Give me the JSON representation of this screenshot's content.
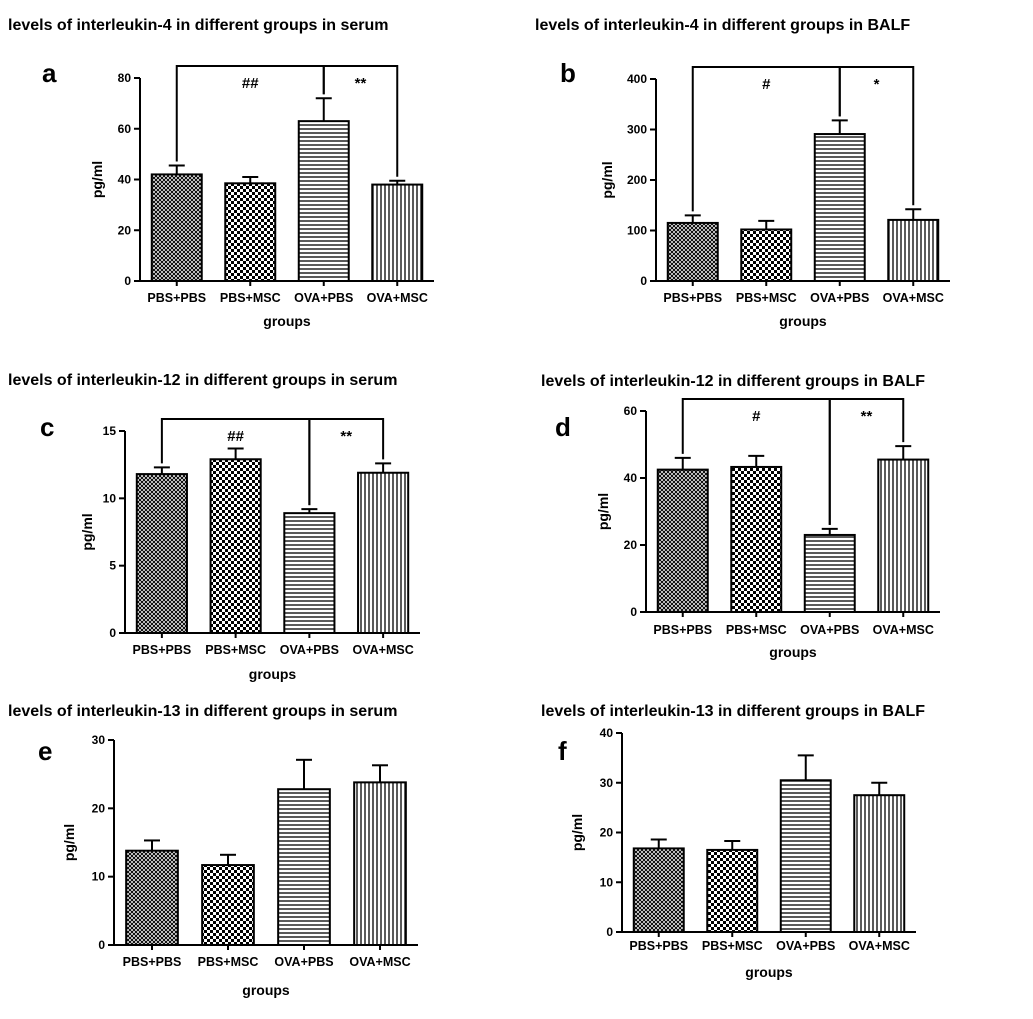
{
  "colors": {
    "ink": "#000000",
    "background": "#ffffff"
  },
  "patterns": [
    "crosshatch",
    "checker",
    "horizontal-lines",
    "vertical-lines"
  ],
  "chart_data": [
    {
      "type": "bar",
      "letter": "a",
      "title": "levels of interleukin-4 in different groups in serum",
      "xlabel": "groups",
      "ylabel": "pg/ml",
      "ylim": [
        0,
        80
      ],
      "yticks": [
        "0",
        "20",
        "40",
        "60",
        "80"
      ],
      "categories": [
        "PBS+PBS",
        "PBS+MSC",
        "OVA+PBS",
        "OVA+MSC"
      ],
      "values": [
        42,
        38.5,
        63,
        38
      ],
      "errors": [
        3.5,
        2.5,
        9,
        1.5
      ],
      "significance": [
        {
          "from": 0,
          "to": 2,
          "label": "##"
        },
        {
          "from": 2,
          "to": 3,
          "label": "**"
        }
      ]
    },
    {
      "type": "bar",
      "letter": "b",
      "title": "levels of interleukin-4 in different groups in BALF",
      "xlabel": "groups",
      "ylabel": "pg/ml",
      "ylim": [
        0,
        400
      ],
      "yticks": [
        "0",
        "100",
        "200",
        "300",
        "400"
      ],
      "categories": [
        "PBS+PBS",
        "PBS+MSC",
        "OVA+PBS",
        "OVA+MSC"
      ],
      "values": [
        115,
        102,
        291,
        121
      ],
      "errors": [
        15,
        17,
        27,
        21
      ],
      "significance": [
        {
          "from": 0,
          "to": 2,
          "label": "#"
        },
        {
          "from": 2,
          "to": 3,
          "label": "*"
        }
      ]
    },
    {
      "type": "bar",
      "letter": "c",
      "title": "levels of interleukin-12 in different groups in serum",
      "xlabel": "groups",
      "ylabel": "pg/ml",
      "ylim": [
        0,
        15
      ],
      "yticks": [
        "0",
        "5",
        "10",
        "15"
      ],
      "categories": [
        "PBS+PBS",
        "PBS+MSC",
        "OVA+PBS",
        "OVA+MSC"
      ],
      "values": [
        11.8,
        12.9,
        8.9,
        11.9
      ],
      "errors": [
        0.5,
        0.8,
        0.3,
        0.7
      ],
      "significance": [
        {
          "from": 0,
          "to": 2,
          "label": "##"
        },
        {
          "from": 2,
          "to": 3,
          "label": "**"
        }
      ]
    },
    {
      "type": "bar",
      "letter": "d",
      "title": "levels of interleukin-12 in different groups in  BALF",
      "xlabel": "groups",
      "ylabel": "pg/ml",
      "ylim": [
        0,
        60
      ],
      "yticks": [
        "0",
        "20",
        "40",
        "60"
      ],
      "categories": [
        "PBS+PBS",
        "PBS+MSC",
        "OVA+PBS",
        "OVA+MSC"
      ],
      "values": [
        42.5,
        43.3,
        23,
        45.5
      ],
      "errors": [
        3.5,
        3.3,
        1.8,
        4
      ],
      "significance": [
        {
          "from": 0,
          "to": 2,
          "label": "#"
        },
        {
          "from": 2,
          "to": 3,
          "label": "**"
        }
      ]
    },
    {
      "type": "bar",
      "letter": "e",
      "title": "levels of interleukin-13 in different groups in serum",
      "xlabel": "groups",
      "ylabel": "pg/ml",
      "ylim": [
        0,
        30
      ],
      "yticks": [
        "0",
        "10",
        "20",
        "30"
      ],
      "categories": [
        "PBS+PBS",
        "PBS+MSC",
        "OVA+PBS",
        "OVA+MSC"
      ],
      "values": [
        13.8,
        11.7,
        22.8,
        23.8
      ],
      "errors": [
        1.5,
        1.5,
        4.3,
        2.5
      ],
      "significance": []
    },
    {
      "type": "bar",
      "letter": "f",
      "title": "levels of interleukin-13 in different groups in BALF",
      "xlabel": "groups",
      "ylabel": "pg/ml",
      "ylim": [
        0,
        40
      ],
      "yticks": [
        "0",
        "10",
        "20",
        "30",
        "40"
      ],
      "categories": [
        "PBS+PBS",
        "PBS+MSC",
        "OVA+PBS",
        "OVA+MSC"
      ],
      "values": [
        16.8,
        16.5,
        30.5,
        27.5
      ],
      "errors": [
        1.8,
        1.8,
        5,
        2.5
      ],
      "significance": []
    }
  ]
}
